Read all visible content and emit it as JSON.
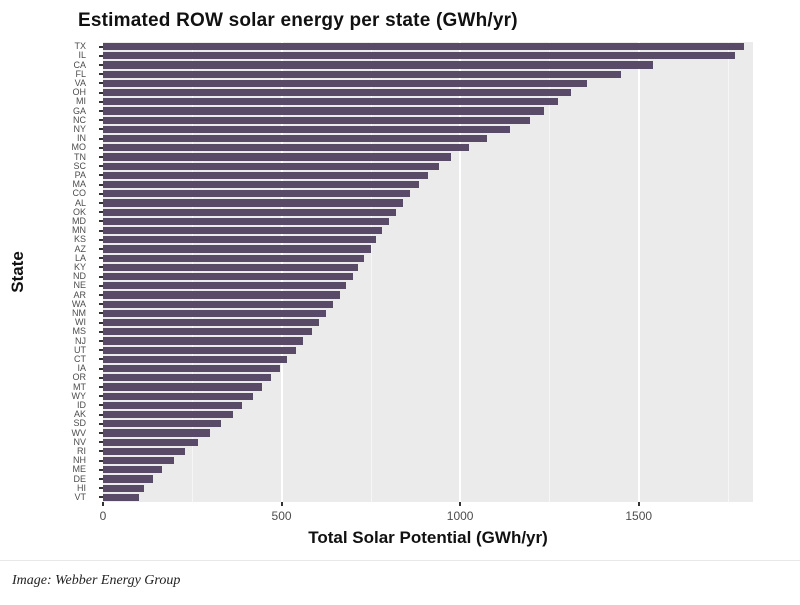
{
  "title": "Estimated ROW solar energy per state (GWh/yr)",
  "caption": "Image: Webber Energy Group",
  "axes": {
    "x_title": "Total Solar Potential (GWh/yr)",
    "y_title": "State"
  },
  "colors": {
    "bar": "#594a68",
    "panel_background": "#ebebeb",
    "gridline": "#ffffff",
    "tick_label": "#4d4d4d",
    "text": "#111111",
    "page_background": "#ffffff"
  },
  "chart_data": {
    "type": "bar",
    "orientation": "horizontal",
    "title": "Estimated ROW solar energy per state (GWh/yr)",
    "xlabel": "Total Solar Potential (GWh/yr)",
    "ylabel": "State",
    "xlim": [
      0,
      1820
    ],
    "x_ticks": [
      0,
      500,
      1000,
      1500
    ],
    "grid": "major-white-on-gray",
    "legend_position": "none",
    "categories": [
      "TX",
      "IL",
      "CA",
      "FL",
      "VA",
      "OH",
      "MI",
      "GA",
      "NC",
      "NY",
      "IN",
      "MO",
      "TN",
      "SC",
      "PA",
      "MA",
      "CO",
      "AL",
      "OK",
      "MD",
      "MN",
      "KS",
      "AZ",
      "LA",
      "KY",
      "ND",
      "NE",
      "AR",
      "WA",
      "NM",
      "WI",
      "MS",
      "NJ",
      "UT",
      "CT",
      "IA",
      "OR",
      "MT",
      "WY",
      "ID",
      "AK",
      "SD",
      "WV",
      "NV",
      "RI",
      "NH",
      "ME",
      "DE",
      "HI",
      "VT"
    ],
    "values": [
      1795,
      1770,
      1540,
      1450,
      1355,
      1310,
      1275,
      1235,
      1195,
      1140,
      1075,
      1025,
      975,
      940,
      910,
      885,
      860,
      840,
      820,
      800,
      780,
      765,
      750,
      730,
      715,
      700,
      680,
      665,
      645,
      625,
      605,
      585,
      560,
      540,
      515,
      495,
      470,
      445,
      420,
      390,
      365,
      330,
      300,
      265,
      230,
      200,
      165,
      140,
      115,
      100
    ]
  }
}
